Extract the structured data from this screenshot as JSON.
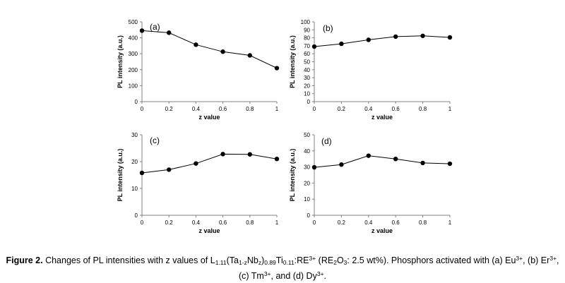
{
  "chart_data": [
    {
      "type": "line",
      "panel_label": "(a)",
      "xlabel": "z value",
      "ylabel": "PL intensity (a.u.)",
      "x": [
        0,
        0.2,
        0.4,
        0.6,
        0.8,
        1
      ],
      "x_tick_labels": [
        "0",
        "0.2",
        "0.4",
        "0.6",
        "0.8",
        "1"
      ],
      "values": [
        445,
        432,
        357,
        313,
        290,
        210
      ],
      "ylim": [
        0,
        500
      ],
      "y_ticks": [
        0,
        100,
        200,
        300,
        400,
        500
      ],
      "y_tick_labels": [
        "0",
        "100",
        "200",
        "300",
        "400",
        "500"
      ]
    },
    {
      "type": "line",
      "panel_label": "(b)",
      "xlabel": "z value",
      "ylabel": "PL intensity (a.u.)",
      "x": [
        0,
        0.2,
        0.4,
        0.6,
        0.8,
        1
      ],
      "x_tick_labels": [
        "0",
        "0.2",
        "0.4",
        "0.6",
        "0.8",
        "1"
      ],
      "values": [
        69,
        72.5,
        77.5,
        81.5,
        82.5,
        80.5
      ],
      "ylim": [
        0,
        100
      ],
      "y_ticks": [
        0,
        10,
        20,
        30,
        40,
        50,
        60,
        70,
        80,
        90,
        100
      ],
      "y_tick_labels": [
        "0",
        "10",
        "20",
        "30",
        "40",
        "50",
        "60",
        "70",
        "80",
        "90",
        "100"
      ]
    },
    {
      "type": "line",
      "panel_label": "(c)",
      "xlabel": "z value",
      "ylabel": "PL intensity (a.u.)",
      "x": [
        0,
        0.2,
        0.4,
        0.6,
        0.8,
        1
      ],
      "x_tick_labels": [
        "0",
        "0.2",
        "0.4",
        "0.6",
        "0.8",
        "1"
      ],
      "values": [
        15.8,
        17,
        19.3,
        22.8,
        22.7,
        21
      ],
      "ylim": [
        0,
        30
      ],
      "y_ticks": [
        0,
        10,
        20,
        30
      ],
      "y_tick_labels": [
        "0",
        "10",
        "20",
        "30"
      ]
    },
    {
      "type": "line",
      "panel_label": "(d)",
      "xlabel": "z value",
      "ylabel": "PL intensity (a.u.)",
      "x": [
        0,
        0.2,
        0.4,
        0.6,
        0.8,
        1
      ],
      "x_tick_labels": [
        "0",
        "0.2",
        "0.4",
        "0.6",
        "0.8",
        "1"
      ],
      "values": [
        29.8,
        31.5,
        37,
        35,
        32.5,
        32
      ],
      "ylim": [
        0,
        50
      ],
      "y_ticks": [
        0,
        10,
        20,
        30,
        40,
        50
      ],
      "y_tick_labels": [
        "0",
        "10",
        "20",
        "30",
        "40",
        "50"
      ]
    }
  ],
  "caption": {
    "label": "Figure 2.",
    "t1": "Changes of PL intensities with z values of L",
    "s1": "1.11",
    "t2": "(Ta",
    "s2": "1-z",
    "t3": "Nb",
    "s3": "z",
    "t4": ")",
    "s4": "0.89",
    "t5": "Ti",
    "s5": "0.11",
    "t6": ":RE",
    "p1": "3+",
    "t7": " (RE",
    "s6": "2",
    "t8": "O",
    "s7": "3",
    "t9": ": 2.5 wt%). Phosphors activated with (a) Eu",
    "p2": "3+",
    "t10": ", (b) Er",
    "p3": "3+",
    "t11": ", (c) Tm",
    "p4": "3+",
    "t12": ", and (d) Dy",
    "p5": "3+",
    "t13": "."
  }
}
